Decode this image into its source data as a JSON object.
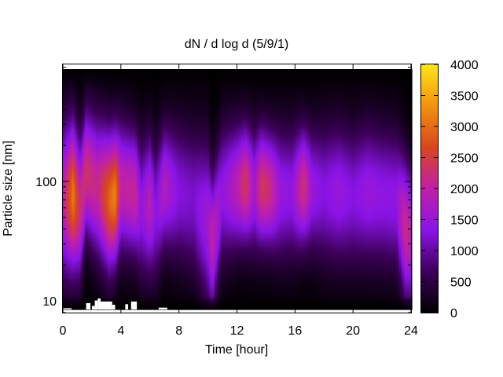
{
  "chart_data": {
    "type": "heatmap",
    "title": "dN / d log d (5/9/1)",
    "xlabel": "Time [hour]",
    "ylabel": "Particle size [nm]",
    "xlim": [
      0,
      24
    ],
    "ylim": [
      8,
      950
    ],
    "y_scale": "log",
    "x_ticks": [
      0,
      4,
      8,
      12,
      16,
      20,
      24
    ],
    "y_ticks": [
      {
        "value": 10,
        "label": "10"
      },
      {
        "value": 100,
        "label": "100"
      }
    ],
    "colorbar": {
      "min": 0,
      "max": 4000,
      "ticks": [
        0,
        500,
        1000,
        1500,
        2000,
        2500,
        3000,
        3500,
        4000
      ],
      "colormap": [
        "#000000",
        "#3d005a",
        "#8a14e6",
        "#c020a8",
        "#d8461e",
        "#f29310",
        "#ffe61a"
      ]
    },
    "bands": [
      {
        "t": 0.0,
        "peak_d": 70,
        "peak": 1900,
        "width": 0.45
      },
      {
        "t": 0.7,
        "peak_d": 75,
        "peak": 3100,
        "width": 0.42
      },
      {
        "t": 1.2,
        "peak_d": 60,
        "peak": 2200,
        "width": 0.4
      },
      {
        "t": 1.6,
        "peak_d": 120,
        "peak": 2300,
        "width": 0.36
      },
      {
        "t": 2.4,
        "peak_d": 90,
        "peak": 2100,
        "width": 0.4
      },
      {
        "t": 3.2,
        "peak_d": 70,
        "peak": 2900,
        "width": 0.4
      },
      {
        "t": 3.6,
        "peak_d": 75,
        "peak": 3200,
        "width": 0.38
      },
      {
        "t": 4.0,
        "peak_d": 90,
        "peak": 2000,
        "width": 0.38
      },
      {
        "t": 5.0,
        "peak_d": 80,
        "peak": 2100,
        "width": 0.36
      },
      {
        "t": 5.4,
        "peak_d": 60,
        "peak": 1400,
        "width": 0.4
      },
      {
        "t": 6.0,
        "peak_d": 65,
        "peak": 1900,
        "width": 0.4
      },
      {
        "t": 6.4,
        "peak_d": 55,
        "peak": 1300,
        "width": 0.4
      },
      {
        "t": 7.0,
        "peak_d": 90,
        "peak": 1800,
        "width": 0.36
      },
      {
        "t": 8.0,
        "peak_d": 80,
        "peak": 1300,
        "width": 0.4
      },
      {
        "t": 9.0,
        "peak_d": 70,
        "peak": 1200,
        "width": 0.42
      },
      {
        "t": 10.0,
        "peak_d": 45,
        "peak": 1600,
        "width": 0.48
      },
      {
        "t": 10.3,
        "peak_d": 30,
        "peak": 2000,
        "width": 0.4
      },
      {
        "t": 11.0,
        "peak_d": 80,
        "peak": 1400,
        "width": 0.4
      },
      {
        "t": 12.0,
        "peak_d": 90,
        "peak": 1900,
        "width": 0.36
      },
      {
        "t": 12.6,
        "peak_d": 95,
        "peak": 2400,
        "width": 0.34
      },
      {
        "t": 13.2,
        "peak_d": 85,
        "peak": 1600,
        "width": 0.36
      },
      {
        "t": 13.7,
        "peak_d": 90,
        "peak": 2400,
        "width": 0.34
      },
      {
        "t": 14.3,
        "peak_d": 85,
        "peak": 2200,
        "width": 0.34
      },
      {
        "t": 15.0,
        "peak_d": 80,
        "peak": 1500,
        "width": 0.38
      },
      {
        "t": 15.8,
        "peak_d": 80,
        "peak": 1400,
        "width": 0.38
      },
      {
        "t": 16.6,
        "peak_d": 90,
        "peak": 2300,
        "width": 0.34
      },
      {
        "t": 17.2,
        "peak_d": 85,
        "peak": 1500,
        "width": 0.36
      },
      {
        "t": 18.0,
        "peak_d": 80,
        "peak": 1300,
        "width": 0.4
      },
      {
        "t": 19.0,
        "peak_d": 80,
        "peak": 1500,
        "width": 0.4
      },
      {
        "t": 20.0,
        "peak_d": 75,
        "peak": 1300,
        "width": 0.4
      },
      {
        "t": 21.0,
        "peak_d": 80,
        "peak": 1500,
        "width": 0.4
      },
      {
        "t": 22.0,
        "peak_d": 75,
        "peak": 1400,
        "width": 0.4
      },
      {
        "t": 23.0,
        "peak_d": 70,
        "peak": 1400,
        "width": 0.4
      },
      {
        "t": 23.6,
        "peak_d": 40,
        "peak": 2200,
        "width": 0.4
      },
      {
        "t": 24.0,
        "peak_d": 35,
        "peak": 1900,
        "width": 0.4
      }
    ],
    "missing_data_cells": [
      {
        "t0": 0.0,
        "t1": 0.6,
        "d_top": 8.7
      },
      {
        "t0": 1.6,
        "t1": 1.9,
        "d_top": 9.6
      },
      {
        "t0": 2.0,
        "t1": 2.2,
        "d_top": 9.1
      },
      {
        "t0": 2.2,
        "t1": 2.4,
        "d_top": 10.1
      },
      {
        "t0": 2.4,
        "t1": 2.6,
        "d_top": 10.5
      },
      {
        "t0": 2.6,
        "t1": 3.4,
        "d_top": 9.9
      },
      {
        "t0": 3.4,
        "t1": 3.6,
        "d_top": 9.3
      },
      {
        "t0": 4.3,
        "t1": 4.5,
        "d_top": 9.4
      },
      {
        "t0": 4.7,
        "t1": 5.1,
        "d_top": 9.9
      },
      {
        "t0": 6.6,
        "t1": 7.2,
        "d_top": 8.8
      }
    ],
    "grid": false
  }
}
